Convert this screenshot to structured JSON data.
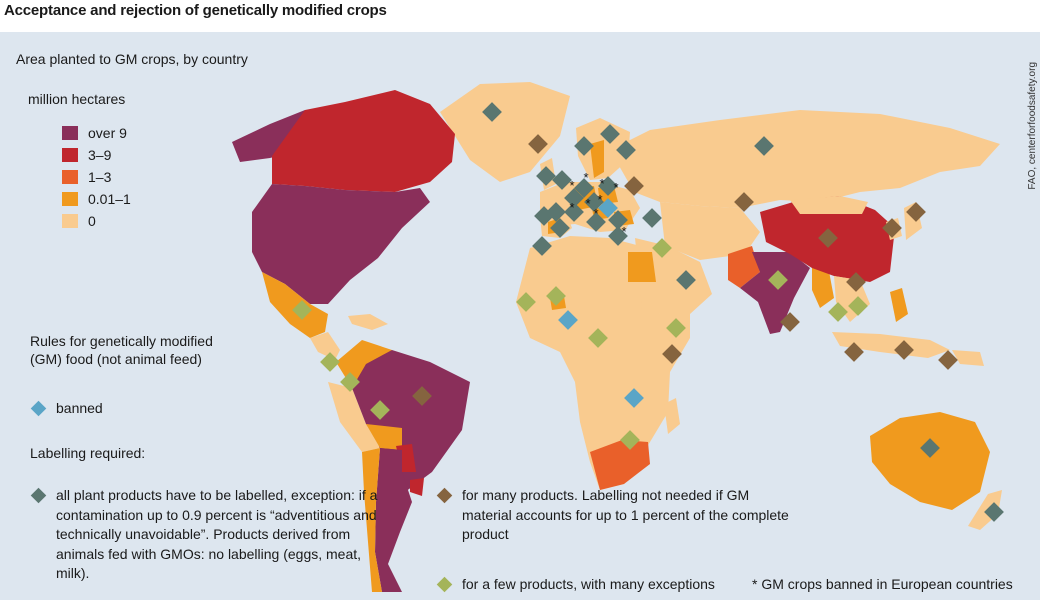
{
  "title": "Acceptance and rejection of genetically modified crops",
  "subtitle": "Area planted to GM crops, by country",
  "units": "million hectares",
  "legend": [
    {
      "label": "over 9",
      "color": "#8a2f5a"
    },
    {
      "label": "3–9",
      "color": "#c0262d"
    },
    {
      "label": "1–3",
      "color": "#e9602a"
    },
    {
      "label": "0.01–1",
      "color": "#f09a1e"
    },
    {
      "label": "0",
      "color": "#f9cb8f"
    }
  ],
  "rules_title": "Rules for genetically modified (GM) food (not animal feed)",
  "banned_label": "banned",
  "labelling_title": "Labelling required:",
  "notes": {
    "all_products": "all plant products have to be labelled, exception: if a contamination up to 0.9 percent is “adventitious and technically unavoidable”. Products derived from animals fed with GMOs: no labelling (eggs, meat, milk).",
    "many_products": "for many products. Labelling not needed if GM material accounts for up to 1 percent of the complete product",
    "few_products": "for a few products, with many exceptions",
    "star": "GM crops banned in European countries"
  },
  "marker_colors": {
    "banned": "#5aa5c7",
    "all_products": "#5a7670",
    "many_products": "#85643f",
    "few_products": "#a4b45a"
  },
  "star_symbol": "*",
  "source": "FAO, centerforfoodsafety.org"
}
